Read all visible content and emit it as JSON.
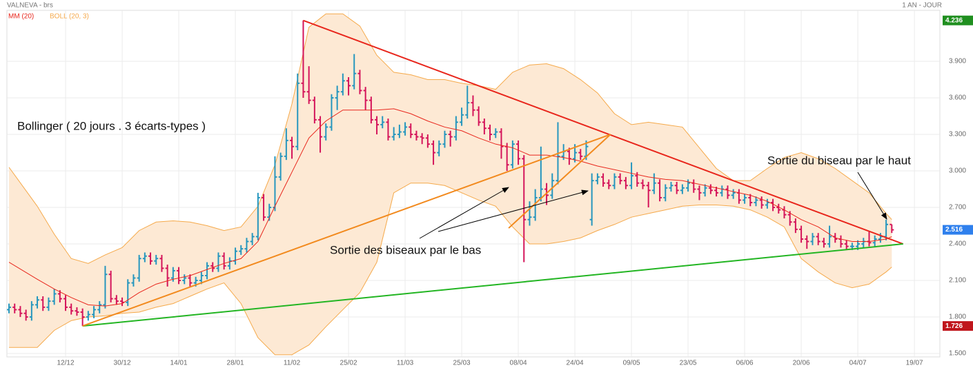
{
  "chart_data": {
    "type": "ohlc",
    "title": "VALNEVA - brs",
    "period": "1 AN - JOUR",
    "up_color": "#2596be",
    "down_color": "#d4145a",
    "xlim": [
      -0.37,
      164.5
    ],
    "ylim": [
      1.472,
      4.319
    ],
    "grid": true,
    "xticks": [
      {
        "value": 10,
        "label": "12/12"
      },
      {
        "value": 20,
        "label": "30/12"
      },
      {
        "value": 30,
        "label": "14/01"
      },
      {
        "value": 40,
        "label": "28/01"
      },
      {
        "value": 50,
        "label": "11/02"
      },
      {
        "value": 60,
        "label": "25/02"
      },
      {
        "value": 70,
        "label": "11/03"
      },
      {
        "value": 80,
        "label": "25/03"
      },
      {
        "value": 90,
        "label": "08/04"
      },
      {
        "value": 100,
        "label": "24/04"
      },
      {
        "value": 110,
        "label": "09/05"
      },
      {
        "value": 120,
        "label": "23/05"
      },
      {
        "value": 130,
        "label": "06/06"
      },
      {
        "value": 140,
        "label": "20/06"
      },
      {
        "value": 150,
        "label": "04/07"
      },
      {
        "value": 160,
        "label": "19/07"
      }
    ],
    "yticks": [
      {
        "value": 1.5,
        "label": "1.500"
      },
      {
        "value": 1.8,
        "label": "1.800"
      },
      {
        "value": 2.1,
        "label": "2.100"
      },
      {
        "value": 2.4,
        "label": "2.400"
      },
      {
        "value": 2.7,
        "label": "2.700"
      },
      {
        "value": 3.0,
        "label": "3.000"
      },
      {
        "value": 3.3,
        "label": "3.300"
      },
      {
        "value": 3.6,
        "label": "3.600"
      },
      {
        "value": 3.9,
        "label": "3.900"
      }
    ],
    "markers": [
      {
        "value": 4.236,
        "color": "#1f8f1f"
      },
      {
        "value": 2.516,
        "color": "#2f80ed"
      },
      {
        "value": 1.726,
        "color": "#c0161c"
      }
    ],
    "bars": [
      [
        1.86,
        1.91,
        1.83,
        1.88
      ],
      [
        1.88,
        1.91,
        1.83,
        1.86
      ],
      [
        1.86,
        1.89,
        1.8,
        1.83
      ],
      [
        1.83,
        1.86,
        1.77,
        1.8
      ],
      [
        1.8,
        1.93,
        1.77,
        1.9
      ],
      [
        1.9,
        1.97,
        1.87,
        1.94
      ],
      [
        1.94,
        1.97,
        1.85,
        1.88
      ],
      [
        1.88,
        1.96,
        1.85,
        1.93
      ],
      [
        1.93,
        2.03,
        1.9,
        1.99
      ],
      [
        1.99,
        2.02,
        1.92,
        1.95
      ],
      [
        1.95,
        1.98,
        1.85,
        1.88
      ],
      [
        1.88,
        1.91,
        1.82,
        1.85
      ],
      [
        1.85,
        1.88,
        1.81,
        1.84
      ],
      [
        1.84,
        1.87,
        1.726,
        1.8
      ],
      [
        1.8,
        1.85,
        1.77,
        1.82
      ],
      [
        1.82,
        1.89,
        1.79,
        1.86
      ],
      [
        1.86,
        1.93,
        1.83,
        1.9
      ],
      [
        1.9,
        2.22,
        1.87,
        2.15
      ],
      [
        2.15,
        2.18,
        1.92,
        1.95
      ],
      [
        1.95,
        1.98,
        1.9,
        1.93
      ],
      [
        1.93,
        1.96,
        1.89,
        1.92
      ],
      [
        1.92,
        2.11,
        1.89,
        2.08
      ],
      [
        2.08,
        2.15,
        2.05,
        2.12
      ],
      [
        2.12,
        2.31,
        2.09,
        2.28
      ],
      [
        2.28,
        2.33,
        2.25,
        2.3
      ],
      [
        2.3,
        2.33,
        2.23,
        2.26
      ],
      [
        2.26,
        2.31,
        2.23,
        2.28
      ],
      [
        2.28,
        2.31,
        2.17,
        2.2
      ],
      [
        2.2,
        2.23,
        2.05,
        2.12
      ],
      [
        2.12,
        2.21,
        2.09,
        2.18
      ],
      [
        2.18,
        2.21,
        2.07,
        2.1
      ],
      [
        2.1,
        2.15,
        2.07,
        2.12
      ],
      [
        2.12,
        2.15,
        2.05,
        2.08
      ],
      [
        2.08,
        2.13,
        2.05,
        2.1
      ],
      [
        2.1,
        2.17,
        2.07,
        2.14
      ],
      [
        2.14,
        2.25,
        2.11,
        2.22
      ],
      [
        2.22,
        2.25,
        2.17,
        2.2
      ],
      [
        2.2,
        2.33,
        2.17,
        2.3
      ],
      [
        2.3,
        2.33,
        2.19,
        2.22
      ],
      [
        2.22,
        2.29,
        2.19,
        2.26
      ],
      [
        2.26,
        2.37,
        2.23,
        2.34
      ],
      [
        2.34,
        2.39,
        2.31,
        2.36
      ],
      [
        2.36,
        2.45,
        2.33,
        2.42
      ],
      [
        2.42,
        2.49,
        2.39,
        2.46
      ],
      [
        2.46,
        2.82,
        2.43,
        2.78
      ],
      [
        2.78,
        2.81,
        2.59,
        2.62
      ],
      [
        2.62,
        2.73,
        2.59,
        2.7
      ],
      [
        2.7,
        3.12,
        2.67,
        2.95
      ],
      [
        2.95,
        3.15,
        2.92,
        3.12
      ],
      [
        3.12,
        3.35,
        3.09,
        3.25
      ],
      [
        3.25,
        3.28,
        3.1,
        3.2
      ],
      [
        3.2,
        3.8,
        3.17,
        3.72
      ],
      [
        3.72,
        4.236,
        3.6,
        3.65
      ],
      [
        3.65,
        3.86,
        3.55,
        3.58
      ],
      [
        3.58,
        3.61,
        3.39,
        3.42
      ],
      [
        3.42,
        3.45,
        3.15,
        3.28
      ],
      [
        3.28,
        3.39,
        3.25,
        3.36
      ],
      [
        3.36,
        3.63,
        3.33,
        3.6
      ],
      [
        3.6,
        3.7,
        3.5,
        3.65
      ],
      [
        3.65,
        3.8,
        3.62,
        3.74
      ],
      [
        3.74,
        3.77,
        3.62,
        3.7
      ],
      [
        3.7,
        3.96,
        3.67,
        3.8
      ],
      [
        3.8,
        3.83,
        3.63,
        3.66
      ],
      [
        3.66,
        3.69,
        3.5,
        3.58
      ],
      [
        3.58,
        3.61,
        3.39,
        3.42
      ],
      [
        3.42,
        3.45,
        3.3,
        3.38
      ],
      [
        3.38,
        3.45,
        3.35,
        3.4
      ],
      [
        3.4,
        3.43,
        3.25,
        3.28
      ],
      [
        3.28,
        3.36,
        3.25,
        3.3
      ],
      [
        3.3,
        3.38,
        3.27,
        3.32
      ],
      [
        3.32,
        3.4,
        3.29,
        3.36
      ],
      [
        3.36,
        3.39,
        3.27,
        3.3
      ],
      [
        3.3,
        3.33,
        3.25,
        3.28
      ],
      [
        3.28,
        3.31,
        3.22,
        3.27
      ],
      [
        3.27,
        3.3,
        3.19,
        3.22
      ],
      [
        3.22,
        3.25,
        3.05,
        3.15
      ],
      [
        3.15,
        3.25,
        3.12,
        3.22
      ],
      [
        3.22,
        3.33,
        3.19,
        3.3
      ],
      [
        3.3,
        3.33,
        3.2,
        3.28
      ],
      [
        3.28,
        3.45,
        3.25,
        3.4
      ],
      [
        3.4,
        3.52,
        3.37,
        3.46
      ],
      [
        3.46,
        3.7,
        3.43,
        3.56
      ],
      [
        3.56,
        3.62,
        3.45,
        3.5
      ],
      [
        3.5,
        3.53,
        3.37,
        3.4
      ],
      [
        3.4,
        3.43,
        3.3,
        3.35
      ],
      [
        3.35,
        3.38,
        3.25,
        3.3
      ],
      [
        3.3,
        3.35,
        3.27,
        3.32
      ],
      [
        3.32,
        3.35,
        3.1,
        3.2
      ],
      [
        3.2,
        3.23,
        3.0,
        3.05
      ],
      [
        3.05,
        3.25,
        3.02,
        3.22
      ],
      [
        3.22,
        3.25,
        3.05,
        3.1
      ],
      [
        3.1,
        3.13,
        2.25,
        2.6
      ],
      [
        2.6,
        2.75,
        2.55,
        2.62
      ],
      [
        2.62,
        2.85,
        2.59,
        2.78
      ],
      [
        2.78,
        3.2,
        2.75,
        2.85
      ],
      [
        2.85,
        2.9,
        2.72,
        2.8
      ],
      [
        2.8,
        2.98,
        2.77,
        2.92
      ],
      [
        2.92,
        3.4,
        2.89,
        3.12
      ],
      [
        3.12,
        3.22,
        3.09,
        3.16
      ],
      [
        3.16,
        3.19,
        3.05,
        3.1
      ],
      [
        3.1,
        3.22,
        3.07,
        3.15
      ],
      [
        3.15,
        3.18,
        3.09,
        3.12
      ],
      [
        3.12,
        3.25,
        3.09,
        3.2
      ],
      [
        2.6,
        2.98,
        2.55,
        2.92
      ],
      [
        2.92,
        2.98,
        2.89,
        2.95
      ],
      [
        2.95,
        2.98,
        2.87,
        2.9
      ],
      [
        2.9,
        2.93,
        2.85,
        2.88
      ],
      [
        2.88,
        2.98,
        2.85,
        2.95
      ],
      [
        2.95,
        2.98,
        2.89,
        2.92
      ],
      [
        2.92,
        2.95,
        2.85,
        2.88
      ],
      [
        2.88,
        3.07,
        2.85,
        2.96
      ],
      [
        2.96,
        2.99,
        2.87,
        2.9
      ],
      [
        2.9,
        2.93,
        2.85,
        2.88
      ],
      [
        2.88,
        2.91,
        2.7,
        2.84
      ],
      [
        2.84,
        2.98,
        2.81,
        2.9
      ],
      [
        2.9,
        2.93,
        2.75,
        2.78
      ],
      [
        2.78,
        2.89,
        2.75,
        2.86
      ],
      [
        2.86,
        2.91,
        2.83,
        2.88
      ],
      [
        2.88,
        2.91,
        2.81,
        2.84
      ],
      [
        2.84,
        2.89,
        2.81,
        2.86
      ],
      [
        2.86,
        2.93,
        2.83,
        2.9
      ],
      [
        2.9,
        2.93,
        2.82,
        2.85
      ],
      [
        2.85,
        2.88,
        2.76,
        2.82
      ],
      [
        2.82,
        2.89,
        2.79,
        2.86
      ],
      [
        2.86,
        2.89,
        2.81,
        2.84
      ],
      [
        2.84,
        2.87,
        2.79,
        2.82
      ],
      [
        2.82,
        2.88,
        2.79,
        2.85
      ],
      [
        2.85,
        2.88,
        2.77,
        2.8
      ],
      [
        2.8,
        2.85,
        2.77,
        2.82
      ],
      [
        2.82,
        2.85,
        2.73,
        2.76
      ],
      [
        2.76,
        2.81,
        2.73,
        2.78
      ],
      [
        2.78,
        2.81,
        2.71,
        2.74
      ],
      [
        2.74,
        2.79,
        2.71,
        2.76
      ],
      [
        2.76,
        2.79,
        2.69,
        2.72
      ],
      [
        2.72,
        2.77,
        2.69,
        2.74
      ],
      [
        2.74,
        2.77,
        2.67,
        2.7
      ],
      [
        2.7,
        2.73,
        2.65,
        2.68
      ],
      [
        2.68,
        2.71,
        2.61,
        2.64
      ],
      [
        2.64,
        2.67,
        2.55,
        2.58
      ],
      [
        2.58,
        2.61,
        2.49,
        2.52
      ],
      [
        2.52,
        2.55,
        2.41,
        2.44
      ],
      [
        2.44,
        2.47,
        2.36,
        2.42
      ],
      [
        2.42,
        2.49,
        2.39,
        2.46
      ],
      [
        2.46,
        2.49,
        2.39,
        2.42
      ],
      [
        2.42,
        2.45,
        2.37,
        2.4
      ],
      [
        2.4,
        2.55,
        2.37,
        2.46
      ],
      [
        2.46,
        2.49,
        2.41,
        2.44
      ],
      [
        2.44,
        2.47,
        2.37,
        2.4
      ],
      [
        2.4,
        2.43,
        2.35,
        2.38
      ],
      [
        2.38,
        2.41,
        2.35,
        2.38
      ],
      [
        2.38,
        2.43,
        2.35,
        2.4
      ],
      [
        2.4,
        2.45,
        2.37,
        2.42
      ],
      [
        2.42,
        2.5,
        2.38,
        2.41
      ],
      [
        2.41,
        2.47,
        2.38,
        2.44
      ],
      [
        2.44,
        2.49,
        2.41,
        2.46
      ],
      [
        2.46,
        2.6,
        2.43,
        2.56
      ],
      [
        2.56,
        2.56,
        2.49,
        2.516
      ]
    ],
    "x": [
      0,
      5,
      8,
      11,
      14,
      17,
      20,
      23,
      26,
      29,
      32,
      35,
      38,
      41,
      44,
      47,
      50,
      53,
      56,
      59,
      62,
      65,
      68,
      71,
      74,
      77,
      80,
      83,
      86,
      89,
      92,
      95,
      98,
      101,
      104,
      107,
      110,
      113,
      116,
      119,
      122,
      125,
      128,
      131,
      134,
      137,
      140,
      143,
      146,
      149,
      152,
      155,
      156
    ],
    "series": [
      {
        "name": "MM (20)",
        "color": "#e8261c",
        "values": [
          2.25,
          2.11,
          2.03,
          1.96,
          1.9,
          1.89,
          1.91,
          2.0,
          2.07,
          2.11,
          2.14,
          2.19,
          2.24,
          2.28,
          2.42,
          2.71,
          2.99,
          3.27,
          3.41,
          3.5,
          3.5,
          3.5,
          3.51,
          3.47,
          3.41,
          3.36,
          3.33,
          3.27,
          3.22,
          3.19,
          3.13,
          3.13,
          3.11,
          3.08,
          3.04,
          3.01,
          2.98,
          2.95,
          2.93,
          2.92,
          2.89,
          2.86,
          2.83,
          2.8,
          2.75,
          2.68,
          2.6,
          2.54,
          2.45,
          2.42,
          2.42,
          2.44,
          2.46
        ]
      },
      {
        "name": "BOLL (20, 3)",
        "color": "#f5a94a",
        "fill": "#fde9d4",
        "upper": [
          3.03,
          2.71,
          2.48,
          2.28,
          2.24,
          2.31,
          2.37,
          2.51,
          2.58,
          2.59,
          2.58,
          2.55,
          2.51,
          2.54,
          2.71,
          3.05,
          3.55,
          4.18,
          4.29,
          4.29,
          4.19,
          3.95,
          3.81,
          3.79,
          3.75,
          3.75,
          3.72,
          3.7,
          3.67,
          3.81,
          3.87,
          3.88,
          3.84,
          3.75,
          3.64,
          3.47,
          3.38,
          3.4,
          3.38,
          3.36,
          3.19,
          3.02,
          2.92,
          2.92,
          3.02,
          3.11,
          3.15,
          3.1,
          3.02,
          2.92,
          2.82,
          2.65,
          2.6
        ],
        "lower": [
          1.55,
          1.55,
          1.69,
          1.77,
          1.8,
          1.81,
          1.83,
          1.84,
          1.88,
          1.91,
          1.97,
          2.03,
          2.08,
          1.91,
          1.63,
          1.49,
          1.49,
          1.57,
          1.72,
          1.86,
          2.0,
          2.25,
          2.82,
          2.9,
          2.9,
          2.88,
          2.82,
          2.76,
          2.71,
          2.54,
          2.4,
          2.4,
          2.42,
          2.45,
          2.51,
          2.56,
          2.62,
          2.65,
          2.68,
          2.71,
          2.72,
          2.72,
          2.71,
          2.68,
          2.62,
          2.54,
          2.28,
          2.17,
          2.08,
          2.04,
          2.07,
          2.17,
          2.21
        ]
      }
    ],
    "trendlines": [
      {
        "color": "#e8261c",
        "x": [
          52,
          158
        ],
        "y": [
          4.236,
          2.4
        ]
      },
      {
        "color": "#22b522",
        "x": [
          13,
          158
        ],
        "y": [
          1.726,
          2.4
        ]
      },
      {
        "color": "#f28a1e",
        "x": [
          13,
          106.3
        ],
        "y": [
          1.726,
          3.3
        ]
      },
      {
        "color": "#f28a1e",
        "x": [
          88.3,
          106.3
        ],
        "y": [
          2.53,
          3.3
        ]
      }
    ],
    "annotations": [
      "Bollinger ( 20 jours . 3 écarts-types )",
      "Sortie des biseaux par le bas",
      "Sortie du biseau par le haut"
    ]
  }
}
